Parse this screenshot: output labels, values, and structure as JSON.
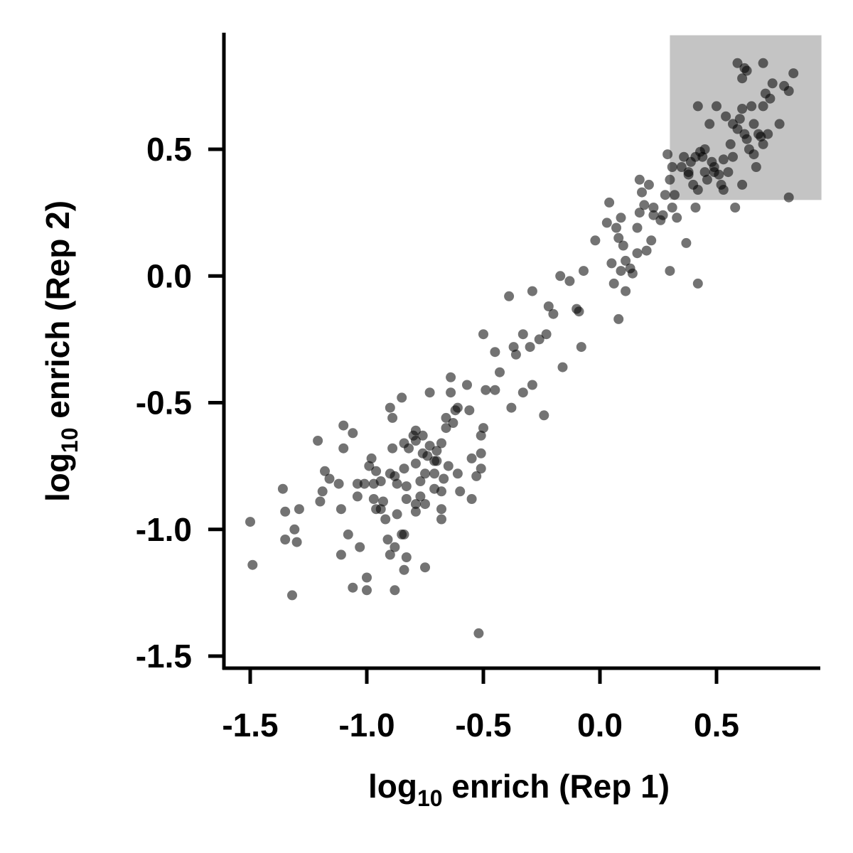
{
  "chart_data": {
    "type": "scatter",
    "title": "",
    "xlabel": {
      "prefix": "log",
      "subscript": "10",
      "suffix": " enrich (Rep 1)"
    },
    "ylabel": {
      "prefix": "log",
      "subscript": "10",
      "suffix": " enrich (Rep 2)"
    },
    "xlim": [
      -1.6,
      0.95
    ],
    "ylim": [
      -1.55,
      0.95
    ],
    "xticks": [
      -1.5,
      -1.0,
      -0.5,
      0.0,
      0.5
    ],
    "yticks": [
      -1.5,
      -1.0,
      -0.5,
      0.0,
      0.5
    ],
    "xtick_labels": [
      "-1.5",
      "-1.0",
      "-0.5",
      "0.0",
      "0.5"
    ],
    "ytick_labels": [
      "-1.5",
      "-1.0",
      "-0.5",
      "0.0",
      "0.5"
    ],
    "grid": false,
    "legend": "none",
    "point_color": "#000000",
    "point_opacity": 0.55,
    "highlight_region": {
      "x": [
        0.3,
        0.95
      ],
      "y": [
        0.3,
        0.95
      ],
      "color": "#c4c4c4"
    },
    "series": [
      {
        "points": [
          [
            -1.5,
            -0.97
          ],
          [
            -1.49,
            -1.14
          ],
          [
            -1.36,
            -0.84
          ],
          [
            -1.35,
            -0.93
          ],
          [
            -1.35,
            -1.04
          ],
          [
            -1.31,
            -1.0
          ],
          [
            -1.3,
            -1.05
          ],
          [
            -1.29,
            -0.92
          ],
          [
            -1.32,
            -1.26
          ],
          [
            -1.21,
            -0.65
          ],
          [
            -1.19,
            -0.85
          ],
          [
            -1.18,
            -0.77
          ],
          [
            -1.16,
            -0.8
          ],
          [
            -1.2,
            -0.89
          ],
          [
            -1.1,
            -0.59
          ],
          [
            -1.06,
            -0.62
          ],
          [
            -1.1,
            -0.68
          ],
          [
            -1.12,
            -0.82
          ],
          [
            -1.11,
            -0.92
          ],
          [
            -1.08,
            -1.02
          ],
          [
            -1.11,
            -1.1
          ],
          [
            -1.04,
            -0.82
          ],
          [
            -1.04,
            -0.87
          ],
          [
            -1.01,
            -0.82
          ],
          [
            -0.99,
            -0.75
          ],
          [
            -0.98,
            -0.72
          ],
          [
            -0.97,
            -0.82
          ],
          [
            -0.97,
            -0.88
          ],
          [
            -1.03,
            -1.07
          ],
          [
            -1.06,
            -1.23
          ],
          [
            -1.0,
            -1.19
          ],
          [
            -1.0,
            -1.24
          ],
          [
            -0.96,
            -0.77
          ],
          [
            -0.94,
            -0.81
          ],
          [
            -0.93,
            -0.89
          ],
          [
            -0.94,
            -0.92
          ],
          [
            -0.92,
            -0.96
          ],
          [
            -0.96,
            -0.92
          ],
          [
            -0.91,
            -1.04
          ],
          [
            -0.9,
            -1.1
          ],
          [
            -0.9,
            -0.52
          ],
          [
            -0.89,
            -0.56
          ],
          [
            -0.89,
            -0.68
          ],
          [
            -0.9,
            -0.78
          ],
          [
            -0.88,
            -0.79
          ],
          [
            -0.87,
            -0.82
          ],
          [
            -0.87,
            -0.94
          ],
          [
            -0.88,
            -1.07
          ],
          [
            -0.88,
            -1.24
          ],
          [
            -0.85,
            -0.48
          ],
          [
            -0.84,
            -0.66
          ],
          [
            -0.84,
            -0.76
          ],
          [
            -0.83,
            -0.83
          ],
          [
            -0.83,
            -0.88
          ],
          [
            -0.85,
            -1.02
          ],
          [
            -0.84,
            -1.02
          ],
          [
            -0.84,
            -1.16
          ],
          [
            -0.83,
            -1.11
          ],
          [
            -0.82,
            -0.68
          ],
          [
            -0.8,
            -0.63
          ],
          [
            -0.79,
            -0.65
          ],
          [
            -0.79,
            -0.61
          ],
          [
            -0.79,
            -0.74
          ],
          [
            -0.79,
            -0.93
          ],
          [
            -0.79,
            -0.9
          ],
          [
            -0.77,
            -0.81
          ],
          [
            -0.77,
            -0.87
          ],
          [
            -0.76,
            -0.63
          ],
          [
            -0.76,
            -0.7
          ],
          [
            -0.74,
            -0.71
          ],
          [
            -0.75,
            -0.78
          ],
          [
            -0.75,
            -0.9
          ],
          [
            -0.75,
            -1.15
          ],
          [
            -0.73,
            -0.46
          ],
          [
            -0.73,
            -0.67
          ],
          [
            -0.71,
            -0.73
          ],
          [
            -0.71,
            -0.78
          ],
          [
            -0.7,
            -0.69
          ],
          [
            -0.71,
            -0.84
          ],
          [
            -0.7,
            -0.73
          ],
          [
            -0.68,
            -0.92
          ],
          [
            -0.68,
            -0.96
          ],
          [
            -0.68,
            -0.66
          ],
          [
            -0.68,
            -0.85
          ],
          [
            -0.67,
            -0.8
          ],
          [
            -0.66,
            -0.56
          ],
          [
            -0.66,
            -0.6
          ],
          [
            -0.65,
            -0.75
          ],
          [
            -0.64,
            -0.4
          ],
          [
            -0.64,
            -0.46
          ],
          [
            -0.63,
            -0.58
          ],
          [
            -0.62,
            -0.53
          ],
          [
            -0.61,
            -0.52
          ],
          [
            -0.61,
            -0.78
          ],
          [
            -0.6,
            -0.85
          ],
          [
            -0.57,
            -0.43
          ],
          [
            -0.56,
            -0.53
          ],
          [
            -0.55,
            -0.72
          ],
          [
            -0.55,
            -0.88
          ],
          [
            -0.53,
            -0.79
          ],
          [
            -0.52,
            -1.41
          ],
          [
            -0.51,
            -0.7
          ],
          [
            -0.51,
            -0.63
          ],
          [
            -0.51,
            -0.76
          ],
          [
            -0.5,
            -0.6
          ],
          [
            -0.49,
            -0.45
          ],
          [
            -0.5,
            -0.23
          ],
          [
            -0.45,
            -0.45
          ],
          [
            -0.45,
            -0.3
          ],
          [
            -0.43,
            -0.38
          ],
          [
            -0.39,
            -0.08
          ],
          [
            -0.38,
            -0.52
          ],
          [
            -0.37,
            -0.28
          ],
          [
            -0.36,
            -0.31
          ],
          [
            -0.33,
            -0.46
          ],
          [
            -0.33,
            -0.23
          ],
          [
            -0.3,
            -0.28
          ],
          [
            -0.29,
            -0.43
          ],
          [
            -0.29,
            -0.06
          ],
          [
            -0.26,
            -0.25
          ],
          [
            -0.24,
            -0.55
          ],
          [
            -0.23,
            -0.23
          ],
          [
            -0.22,
            -0.12
          ],
          [
            -0.2,
            -0.15
          ],
          [
            -0.17,
            0.0
          ],
          [
            -0.16,
            -0.36
          ],
          [
            -0.13,
            -0.02
          ],
          [
            -0.1,
            -0.13
          ],
          [
            -0.09,
            -0.14
          ],
          [
            -0.08,
            -0.28
          ],
          [
            -0.07,
            0.02
          ],
          [
            -0.02,
            0.14
          ],
          [
            0.03,
            0.21
          ],
          [
            0.04,
            0.29
          ],
          [
            0.05,
            0.05
          ],
          [
            0.06,
            -0.03
          ],
          [
            0.07,
            0.19
          ],
          [
            0.08,
            -0.17
          ],
          [
            0.08,
            0.15
          ],
          [
            0.09,
            0.23
          ],
          [
            0.09,
            0.02
          ],
          [
            0.1,
            0.12
          ],
          [
            0.11,
            0.06
          ],
          [
            0.11,
            -0.06
          ],
          [
            0.13,
            0.03
          ],
          [
            0.14,
            0.01
          ],
          [
            0.16,
            0.09
          ],
          [
            0.16,
            0.19
          ],
          [
            0.17,
            0.25
          ],
          [
            0.17,
            0.38
          ],
          [
            0.18,
            0.33
          ],
          [
            0.19,
            0.28
          ],
          [
            0.2,
            0.1
          ],
          [
            0.21,
            0.36
          ],
          [
            0.22,
            0.14
          ],
          [
            0.23,
            0.27
          ],
          [
            0.23,
            0.24
          ],
          [
            0.26,
            0.22
          ],
          [
            0.27,
            0.24
          ],
          [
            0.28,
            0.32
          ],
          [
            0.29,
            0.48
          ],
          [
            0.3,
            0.02
          ],
          [
            0.3,
            0.38
          ],
          [
            0.31,
            0.43
          ],
          [
            0.31,
            0.27
          ],
          [
            0.32,
            0.32
          ],
          [
            0.33,
            0.23
          ],
          [
            0.35,
            0.43
          ],
          [
            0.36,
            0.47
          ],
          [
            0.37,
            0.13
          ],
          [
            0.38,
            0.4
          ],
          [
            0.38,
            0.41
          ],
          [
            0.39,
            0.45
          ],
          [
            0.4,
            0.36
          ],
          [
            0.41,
            0.47
          ],
          [
            0.41,
            0.27
          ],
          [
            0.42,
            0.67
          ],
          [
            0.42,
            0.34
          ],
          [
            0.42,
            -0.03
          ],
          [
            0.43,
            0.49
          ],
          [
            0.44,
            0.47
          ],
          [
            0.45,
            0.5
          ],
          [
            0.45,
            0.41
          ],
          [
            0.46,
            0.38
          ],
          [
            0.47,
            0.6
          ],
          [
            0.48,
            0.45
          ],
          [
            0.49,
            0.41
          ],
          [
            0.49,
            0.43
          ],
          [
            0.5,
            0.67
          ],
          [
            0.51,
            0.4
          ],
          [
            0.52,
            0.36
          ],
          [
            0.53,
            0.46
          ],
          [
            0.53,
            0.34
          ],
          [
            0.54,
            0.63
          ],
          [
            0.55,
            0.41
          ],
          [
            0.56,
            0.52
          ],
          [
            0.57,
            0.6
          ],
          [
            0.57,
            0.47
          ],
          [
            0.58,
            0.27
          ],
          [
            0.59,
            0.84
          ],
          [
            0.59,
            0.58
          ],
          [
            0.6,
            0.62
          ],
          [
            0.61,
            0.78
          ],
          [
            0.61,
            0.66
          ],
          [
            0.62,
            0.82
          ],
          [
            0.62,
            0.56
          ],
          [
            0.61,
            0.36
          ],
          [
            0.63,
            0.81
          ],
          [
            0.63,
            0.54
          ],
          [
            0.64,
            0.5
          ],
          [
            0.65,
            0.67
          ],
          [
            0.66,
            0.6
          ],
          [
            0.66,
            0.48
          ],
          [
            0.67,
            0.43
          ],
          [
            0.68,
            0.56
          ],
          [
            0.69,
            0.55
          ],
          [
            0.7,
            0.52
          ],
          [
            0.7,
            0.67
          ],
          [
            0.7,
            0.84
          ],
          [
            0.71,
            0.72
          ],
          [
            0.72,
            0.56
          ],
          [
            0.73,
            0.7
          ],
          [
            0.74,
            0.76
          ],
          [
            0.77,
            0.6
          ],
          [
            0.79,
            0.75
          ],
          [
            0.81,
            0.73
          ],
          [
            0.81,
            0.31
          ],
          [
            0.83,
            0.8
          ]
        ]
      }
    ]
  }
}
